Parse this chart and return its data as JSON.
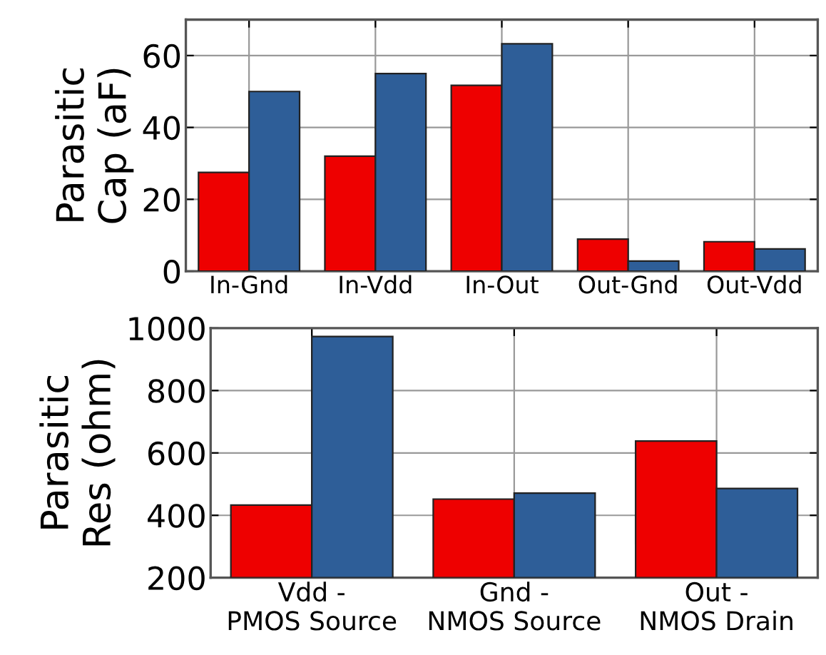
{
  "chart_data": [
    {
      "type": "bar",
      "ylabel": "Parasitic\nCap (aF)",
      "categories": [
        "In-Gnd",
        "In-Vdd",
        "In-Out",
        "Out-Gnd",
        "Out-Vdd"
      ],
      "series": [
        {
          "color": "#ee0000",
          "values": [
            27.5,
            32,
            51.7,
            8.9,
            8.2
          ]
        },
        {
          "color": "#2e5e98",
          "values": [
            50,
            55,
            63.3,
            2.8,
            6.2
          ]
        }
      ],
      "ylim": [
        0,
        70
      ],
      "yticks": [
        0,
        20,
        40,
        60
      ],
      "grid": true
    },
    {
      "type": "bar",
      "ylabel": "Parasitic\nRes (ohm)",
      "categories": [
        "Vdd -\nPMOS Source",
        "Gnd -\nNMOS Source",
        "Out -\nNMOS Drain"
      ],
      "series": [
        {
          "color": "#ee0000",
          "values": [
            433,
            452,
            638
          ]
        },
        {
          "color": "#2e5e98",
          "values": [
            973,
            471,
            486
          ]
        }
      ],
      "ylim": [
        200,
        1000
      ],
      "yticks": [
        200,
        400,
        600,
        800,
        1000
      ],
      "grid": true
    }
  ]
}
